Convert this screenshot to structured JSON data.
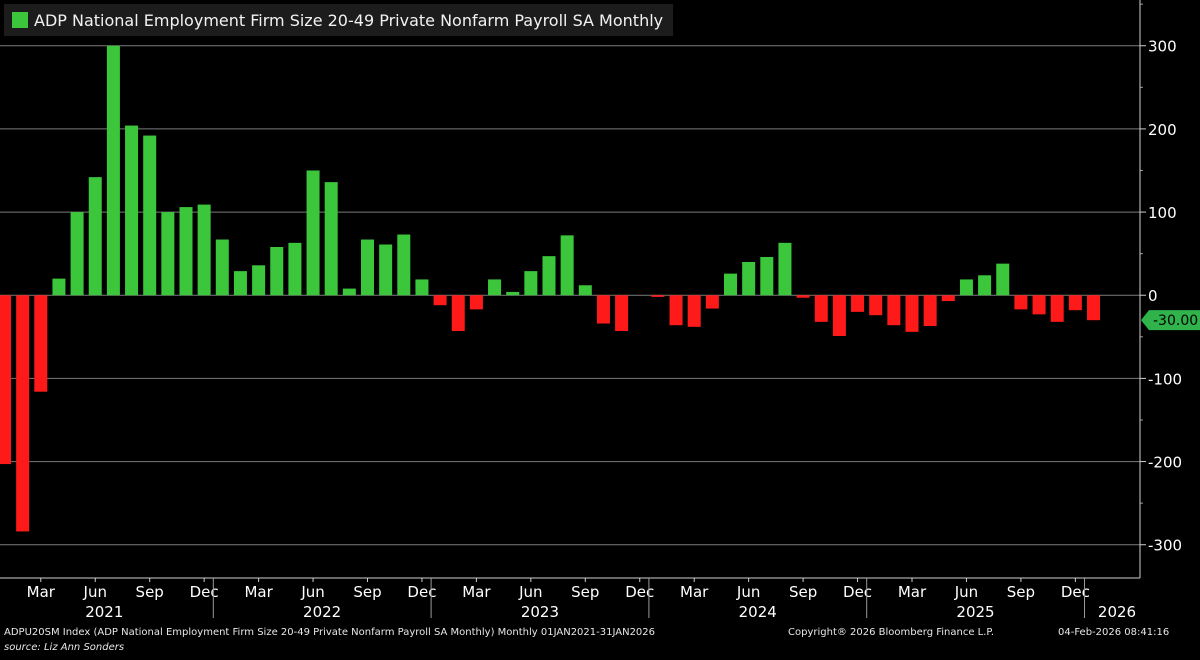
{
  "legend": {
    "label": "ADP National Employment Firm Size 20-49 Private Nonfarm Payroll SA Monthly",
    "color": "#3cc63c"
  },
  "colors": {
    "positive": "#3cc63c",
    "negative": "#ff1a1a",
    "background": "#000000",
    "grid": "#7a7a7a"
  },
  "last_value_label": "-30.00",
  "footer": {
    "index_desc": "ADPU20SM Index (ADP National Employment Firm Size 20-49 Private Nonfarm Payroll SA Monthly) Monthly 01JAN2021-31JAN2026",
    "copyright": "Copyright® 2026 Bloomberg Finance L.P.",
    "timestamp": "04-Feb-2026 08:41:16",
    "source": "source: Liz Ann Sonders"
  },
  "chart_data": {
    "type": "bar",
    "title": "ADP National Employment Firm Size 20-49 Private Nonfarm Payroll SA Monthly",
    "ylim": [
      -340,
      355
    ],
    "yticks": [
      300,
      200,
      100,
      0,
      -100,
      -200,
      -300
    ],
    "grid": true,
    "legend_position": "top-left",
    "categories": [
      "Jan 2021",
      "Feb 2021",
      "Mar 2021",
      "Apr 2021",
      "May 2021",
      "Jun 2021",
      "Jul 2021",
      "Aug 2021",
      "Sep 2021",
      "Oct 2021",
      "Nov 2021",
      "Dec 2021",
      "Jan 2022",
      "Feb 2022",
      "Mar 2022",
      "Apr 2022",
      "May 2022",
      "Jun 2022",
      "Jul 2022",
      "Aug 2022",
      "Sep 2022",
      "Oct 2022",
      "Nov 2022",
      "Dec 2022",
      "Jan 2023",
      "Feb 2023",
      "Mar 2023",
      "Apr 2023",
      "May 2023",
      "Jun 2023",
      "Jul 2023",
      "Aug 2023",
      "Sep 2023",
      "Oct 2023",
      "Nov 2023",
      "Dec 2023",
      "Jan 2024",
      "Feb 2024",
      "Mar 2024",
      "Apr 2024",
      "May 2024",
      "Jun 2024",
      "Jul 2024",
      "Aug 2024",
      "Sep 2024",
      "Oct 2024",
      "Nov 2024",
      "Dec 2024",
      "Jan 2025",
      "Feb 2025",
      "Mar 2025",
      "Apr 2025",
      "May 2025",
      "Jun 2025",
      "Jul 2025",
      "Aug 2025",
      "Sep 2025",
      "Oct 2025",
      "Nov 2025",
      "Dec 2025",
      "Jan 2026"
    ],
    "values": [
      -203,
      -284,
      -116,
      20,
      100,
      142,
      300,
      204,
      192,
      100,
      106,
      109,
      67,
      29,
      36,
      58,
      63,
      150,
      136,
      8,
      67,
      61,
      73,
      19,
      -12,
      -43,
      -17,
      19,
      4,
      29,
      47,
      72,
      12,
      -34,
      -43,
      0,
      -2,
      -36,
      -38,
      -16,
      26,
      40,
      46,
      63,
      -3,
      -32,
      -49,
      -20,
      -24,
      -36,
      -44,
      -37,
      -7,
      19,
      24,
      38,
      -17,
      -23,
      -32,
      -18,
      -30
    ],
    "month_ticks": [
      "Mar",
      "Jun",
      "Sep",
      "Dec",
      "Mar",
      "Jun",
      "Sep",
      "Dec",
      "Mar",
      "Jun",
      "Sep",
      "Dec",
      "Mar",
      "Jun",
      "Sep",
      "Dec",
      "Mar",
      "Jun",
      "Sep",
      "Dec"
    ],
    "years": [
      "2021",
      "2022",
      "2023",
      "2024",
      "2025",
      "2026"
    ]
  }
}
